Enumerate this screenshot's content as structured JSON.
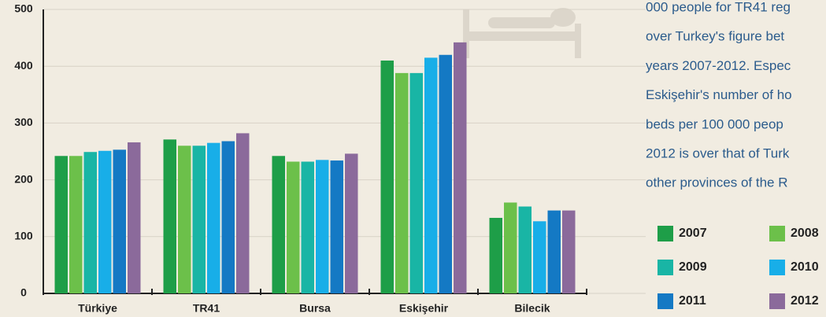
{
  "chart_data": {
    "type": "bar",
    "categories": [
      "Türkiye",
      "TR41",
      "Bursa",
      "Eskişehir",
      "Bilecik"
    ],
    "series": [
      {
        "name": "2007",
        "color": "#1e9e48",
        "values": [
          242,
          271,
          242,
          410,
          133
        ]
      },
      {
        "name": "2008",
        "color": "#6cc04a",
        "values": [
          242,
          260,
          232,
          388,
          160
        ]
      },
      {
        "name": "2009",
        "color": "#19b5a5",
        "values": [
          249,
          260,
          232,
          388,
          153
        ]
      },
      {
        "name": "2010",
        "color": "#18aee8",
        "values": [
          251,
          265,
          235,
          415,
          127
        ]
      },
      {
        "name": "2011",
        "color": "#1479c4",
        "values": [
          253,
          268,
          234,
          420,
          146
        ]
      },
      {
        "name": "2012",
        "color": "#8b6a9b",
        "values": [
          266,
          282,
          246,
          442,
          146
        ]
      }
    ],
    "ylim": [
      0,
      500
    ],
    "yticks": [
      0,
      100,
      200,
      300,
      400,
      500
    ],
    "grid": true,
    "text_lines": [
      "000 people for TR41 reg",
      "over Turkey's figure bet",
      "years 2007-2012. Espec",
      "Eskişehir's number of ho",
      "beds per 100 000 peop",
      "2012 is over that of Turk",
      "other provinces of the R"
    ]
  }
}
